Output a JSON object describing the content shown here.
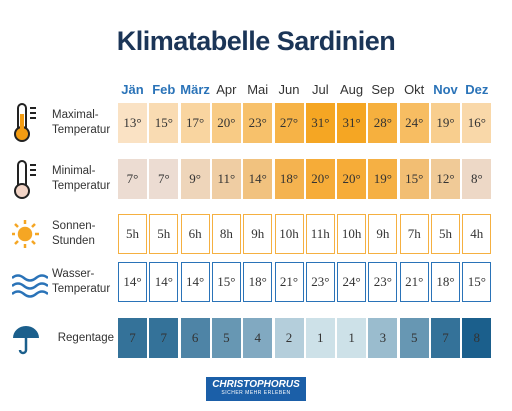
{
  "title": "Klimatabelle Sardinien",
  "months": [
    "Jän",
    "Feb",
    "März",
    "Apr",
    "Mai",
    "Jun",
    "Jul",
    "Aug",
    "Sep",
    "Okt",
    "Nov",
    "Dez"
  ],
  "rows": [
    {
      "label": [
        "Maximal-",
        "Temperatur"
      ],
      "cells": [
        "13°",
        "15°",
        "17°",
        "20°",
        "23°",
        "27°",
        "31°",
        "31°",
        "28°",
        "24°",
        "19°",
        "16°"
      ]
    },
    {
      "label": [
        "Minimal-",
        "Temperatur"
      ],
      "cells": [
        "7°",
        "7°",
        "9°",
        "11°",
        "14°",
        "18°",
        "20°",
        "20°",
        "19°",
        "15°",
        "12°",
        "8°"
      ]
    },
    {
      "label": [
        "Sonnen-",
        "Stunden"
      ],
      "cells": [
        "5h",
        "5h",
        "6h",
        "8h",
        "9h",
        "10h",
        "11h",
        "10h",
        "9h",
        "7h",
        "5h",
        "4h"
      ]
    },
    {
      "label": [
        "Wasser-",
        "Temperatur"
      ],
      "cells": [
        "14°",
        "14°",
        "14°",
        "15°",
        "18°",
        "21°",
        "23°",
        "24°",
        "23°",
        "21°",
        "18°",
        "15°"
      ]
    },
    {
      "label": [
        "Regentage"
      ],
      "cells": [
        "7",
        "7",
        "6",
        "5",
        "4",
        "2",
        "1",
        "1",
        "3",
        "5",
        "7",
        "8"
      ]
    }
  ],
  "logo": {
    "name": "CHRISTOPHORUS",
    "slogan": "SICHER MEHR ERLEBEN"
  }
}
